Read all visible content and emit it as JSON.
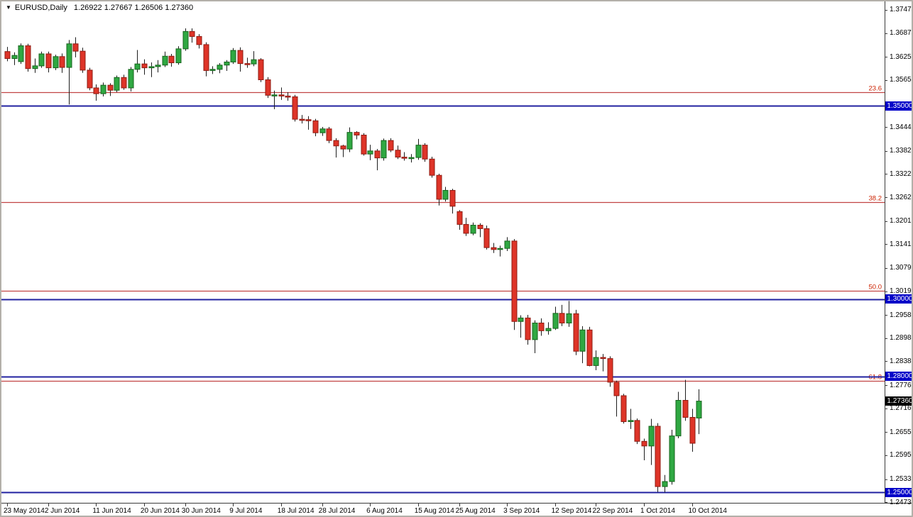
{
  "header": {
    "dropdown_icon": "▼",
    "symbol_timeframe": "EURUSD,Daily",
    "ohlc_text": "1.26922 1.27667 1.26506 1.27360"
  },
  "chart_data": {
    "type": "candlestick",
    "symbol": "EURUSD",
    "timeframe": "Daily",
    "grid": false,
    "ylim": [
      1.2473,
      1.3755
    ],
    "last_candle": {
      "open": 1.26922,
      "high": 1.27667,
      "low": 1.26506,
      "close": 1.2736
    },
    "current_price": "1.27360",
    "candles": [
      [
        1.364,
        1.3652,
        1.3615,
        1.3622
      ],
      [
        1.3622,
        1.3638,
        1.3605,
        1.363
      ],
      [
        1.3614,
        1.3661,
        1.3608,
        1.3655
      ],
      [
        1.3655,
        1.366,
        1.3588,
        1.3596
      ],
      [
        1.3596,
        1.3622,
        1.3585,
        1.3603
      ],
      [
        1.3603,
        1.364,
        1.3598,
        1.3634
      ],
      [
        1.3634,
        1.364,
        1.3586,
        1.3598
      ],
      [
        1.3598,
        1.3632,
        1.3592,
        1.3627
      ],
      [
        1.3627,
        1.3635,
        1.3585,
        1.3599
      ],
      [
        1.3599,
        1.367,
        1.3503,
        1.366
      ],
      [
        1.366,
        1.3677,
        1.3625,
        1.3641
      ],
      [
        1.3641,
        1.365,
        1.3585,
        1.3592
      ],
      [
        1.3592,
        1.3598,
        1.354,
        1.3546
      ],
      [
        1.3546,
        1.3555,
        1.3513,
        1.3531
      ],
      [
        1.3531,
        1.356,
        1.3524,
        1.3553
      ],
      [
        1.3553,
        1.3558,
        1.3525,
        1.354
      ],
      [
        1.354,
        1.3578,
        1.3535,
        1.3573
      ],
      [
        1.3573,
        1.358,
        1.3541,
        1.3546
      ],
      [
        1.3546,
        1.36,
        1.3537,
        1.3594
      ],
      [
        1.3594,
        1.3644,
        1.3586,
        1.3608
      ],
      [
        1.3608,
        1.362,
        1.358,
        1.3598
      ],
      [
        1.3598,
        1.3612,
        1.3574,
        1.3601
      ],
      [
        1.3601,
        1.3618,
        1.3586,
        1.3605
      ],
      [
        1.3605,
        1.364,
        1.36,
        1.3628
      ],
      [
        1.3628,
        1.3634,
        1.3601,
        1.3611
      ],
      [
        1.3611,
        1.3654,
        1.3606,
        1.3647
      ],
      [
        1.3647,
        1.37,
        1.3642,
        1.3692
      ],
      [
        1.3692,
        1.37,
        1.3663,
        1.3679
      ],
      [
        1.3679,
        1.3685,
        1.3648,
        1.3658
      ],
      [
        1.3658,
        1.3664,
        1.3576,
        1.3591
      ],
      [
        1.3591,
        1.3602,
        1.3582,
        1.3594
      ],
      [
        1.3594,
        1.361,
        1.3584,
        1.3605
      ],
      [
        1.3605,
        1.3618,
        1.359,
        1.3613
      ],
      [
        1.3613,
        1.3649,
        1.3608,
        1.3643
      ],
      [
        1.3643,
        1.3651,
        1.3588,
        1.3609
      ],
      [
        1.3609,
        1.3624,
        1.3598,
        1.3608
      ],
      [
        1.3608,
        1.3641,
        1.3602,
        1.3619
      ],
      [
        1.3619,
        1.3623,
        1.3561,
        1.3567
      ],
      [
        1.3567,
        1.3574,
        1.352,
        1.3527
      ],
      [
        1.3527,
        1.3539,
        1.3491,
        1.3528
      ],
      [
        1.3528,
        1.3547,
        1.3515,
        1.3525
      ],
      [
        1.3525,
        1.3535,
        1.3513,
        1.3523
      ],
      [
        1.3523,
        1.3528,
        1.3459,
        1.3465
      ],
      [
        1.3465,
        1.3476,
        1.3454,
        1.3464
      ],
      [
        1.3464,
        1.3473,
        1.3438,
        1.3461
      ],
      [
        1.3461,
        1.3466,
        1.3421,
        1.343
      ],
      [
        1.343,
        1.3445,
        1.3422,
        1.344
      ],
      [
        1.344,
        1.3445,
        1.3403,
        1.341
      ],
      [
        1.341,
        1.3416,
        1.3366,
        1.3396
      ],
      [
        1.3396,
        1.3399,
        1.3367,
        1.3388
      ],
      [
        1.3388,
        1.3444,
        1.338,
        1.3431
      ],
      [
        1.3431,
        1.3434,
        1.3413,
        1.3424
      ],
      [
        1.3424,
        1.3429,
        1.3371,
        1.3375
      ],
      [
        1.3375,
        1.3399,
        1.3359,
        1.3383
      ],
      [
        1.3383,
        1.3388,
        1.3333,
        1.3365
      ],
      [
        1.3365,
        1.3415,
        1.3358,
        1.341
      ],
      [
        1.341,
        1.3416,
        1.338,
        1.3385
      ],
      [
        1.3385,
        1.3397,
        1.3362,
        1.3367
      ],
      [
        1.3367,
        1.338,
        1.3358,
        1.3364
      ],
      [
        1.3364,
        1.3375,
        1.3353,
        1.3366
      ],
      [
        1.3366,
        1.3414,
        1.336,
        1.3398
      ],
      [
        1.3398,
        1.3403,
        1.3355,
        1.3362
      ],
      [
        1.3362,
        1.3368,
        1.3314,
        1.332
      ],
      [
        1.332,
        1.3324,
        1.3242,
        1.3258
      ],
      [
        1.3258,
        1.329,
        1.3252,
        1.3281
      ],
      [
        1.3281,
        1.3285,
        1.3221,
        1.324
      ],
      [
        1.3226,
        1.323,
        1.3179,
        1.3193
      ],
      [
        1.3193,
        1.321,
        1.3163,
        1.317
      ],
      [
        1.317,
        1.3198,
        1.3165,
        1.3191
      ],
      [
        1.3191,
        1.3196,
        1.316,
        1.3182
      ],
      [
        1.3182,
        1.319,
        1.3128,
        1.3133
      ],
      [
        1.3133,
        1.3145,
        1.3119,
        1.3128
      ],
      [
        1.3128,
        1.3138,
        1.311,
        1.3131
      ],
      [
        1.3131,
        1.316,
        1.3124,
        1.315
      ],
      [
        1.315,
        1.3155,
        1.292,
        1.2942
      ],
      [
        1.2942,
        1.2958,
        1.29,
        1.2951
      ],
      [
        1.2951,
        1.2959,
        1.2882,
        1.2895
      ],
      [
        1.2895,
        1.2945,
        1.286,
        1.2938
      ],
      [
        1.2938,
        1.295,
        1.2905,
        1.2918
      ],
      [
        1.2918,
        1.294,
        1.2908,
        1.2924
      ],
      [
        1.2924,
        1.298,
        1.292,
        1.2963
      ],
      [
        1.2963,
        1.2985,
        1.293,
        1.2938
      ],
      [
        1.2938,
        1.2995,
        1.2928,
        1.2962
      ],
      [
        1.2962,
        1.2972,
        1.2855,
        1.2865
      ],
      [
        1.2865,
        1.293,
        1.2834,
        1.292
      ],
      [
        1.292,
        1.2928,
        1.2826,
        1.2828
      ],
      [
        1.2828,
        1.2867,
        1.2816,
        1.2849
      ],
      [
        1.2849,
        1.2858,
        1.2813,
        1.2846
      ],
      [
        1.2846,
        1.2852,
        1.2773,
        1.2785
      ],
      [
        1.2785,
        1.2789,
        1.2696,
        1.275
      ],
      [
        1.275,
        1.2755,
        1.2678,
        1.2683
      ],
      [
        1.2683,
        1.2716,
        1.2664,
        1.2686
      ],
      [
        1.2686,
        1.2691,
        1.2625,
        1.2632
      ],
      [
        1.2632,
        1.2639,
        1.2583,
        1.262
      ],
      [
        1.262,
        1.269,
        1.2571,
        1.2671
      ],
      [
        1.2671,
        1.2679,
        1.2501,
        1.2515
      ],
      [
        1.2515,
        1.2545,
        1.25,
        1.2528
      ],
      [
        1.2528,
        1.2662,
        1.252,
        1.2646
      ],
      [
        1.2646,
        1.276,
        1.264,
        1.2738
      ],
      [
        1.2738,
        1.2791,
        1.2685,
        1.2694
      ],
      [
        1.2694,
        1.2716,
        1.2605,
        1.2627
      ],
      [
        1.26922,
        1.27667,
        1.26506,
        1.2736
      ]
    ],
    "hlines": [
      {
        "price": 1.35,
        "label": "1.35000"
      },
      {
        "price": 1.3,
        "label": "1.30000"
      },
      {
        "price": 1.28,
        "label": "1.28000"
      },
      {
        "price": 1.25,
        "label": "1.25000"
      }
    ],
    "fib_levels": [
      {
        "label": "23.6",
        "price": 1.35349
      },
      {
        "label": "38.2",
        "price": 1.32505
      },
      {
        "label": "50.0",
        "price": 1.30211
      },
      {
        "label": "61.8",
        "price": 1.27881
      }
    ],
    "y_axis": {
      "ticks": [
        {
          "label": "1.37470",
          "price": 1.3747,
          "type": "tick"
        },
        {
          "label": "1.36870",
          "price": 1.3687,
          "type": "tick"
        },
        {
          "label": "1.36255",
          "price": 1.36255,
          "type": "tick"
        },
        {
          "label": "1.35655",
          "price": 1.35655,
          "type": "tick"
        },
        {
          "label": "1.35000",
          "price": 1.35,
          "type": "badge-blue"
        },
        {
          "label": "1.34440",
          "price": 1.3444,
          "type": "tick"
        },
        {
          "label": "1.33825",
          "price": 1.33825,
          "type": "tick"
        },
        {
          "label": "1.33225",
          "price": 1.33225,
          "type": "tick"
        },
        {
          "label": "1.32625",
          "price": 1.32625,
          "type": "tick"
        },
        {
          "label": "1.32010",
          "price": 1.3201,
          "type": "tick"
        },
        {
          "label": "1.31410",
          "price": 1.3141,
          "type": "tick"
        },
        {
          "label": "1.30795",
          "price": 1.30795,
          "type": "tick"
        },
        {
          "label": "1.30195",
          "price": 1.30195,
          "type": "tick"
        },
        {
          "label": "1.30000",
          "price": 1.3,
          "type": "badge-blue"
        },
        {
          "label": "1.29580",
          "price": 1.2958,
          "type": "tick"
        },
        {
          "label": "1.28980",
          "price": 1.2898,
          "type": "tick"
        },
        {
          "label": "1.28380",
          "price": 1.2838,
          "type": "tick"
        },
        {
          "label": "1.28000",
          "price": 1.28,
          "type": "badge-blue"
        },
        {
          "label": "1.27765",
          "price": 1.27765,
          "type": "tick"
        },
        {
          "label": "1.27360",
          "price": 1.2736,
          "type": "badge-black"
        },
        {
          "label": "1.27165",
          "price": 1.27165,
          "type": "tick"
        },
        {
          "label": "1.26550",
          "price": 1.2655,
          "type": "tick"
        },
        {
          "label": "1.25950",
          "price": 1.2595,
          "type": "tick"
        },
        {
          "label": "1.25335",
          "price": 1.25335,
          "type": "tick"
        },
        {
          "label": "1.25000",
          "price": 1.25,
          "type": "badge-blue"
        },
        {
          "label": "1.24735",
          "price": 1.24735,
          "type": "tick"
        }
      ]
    },
    "x_axis": {
      "ticks": [
        {
          "label": "23 May 2014",
          "index": 0
        },
        {
          "label": "2 Jun 2014",
          "index": 6
        },
        {
          "label": "11 Jun 2014",
          "index": 13
        },
        {
          "label": "20 Jun 2014",
          "index": 20
        },
        {
          "label": "30 Jun 2014",
          "index": 26
        },
        {
          "label": "9 Jul 2014",
          "index": 33
        },
        {
          "label": "18 Jul 2014",
          "index": 40
        },
        {
          "label": "28 Jul 2014",
          "index": 46
        },
        {
          "label": "6 Aug 2014",
          "index": 53
        },
        {
          "label": "15 Aug 2014",
          "index": 60
        },
        {
          "label": "25 Aug 2014",
          "index": 66
        },
        {
          "label": "3 Sep 2014",
          "index": 73
        },
        {
          "label": "12 Sep 2014",
          "index": 80
        },
        {
          "label": "22 Sep 2014",
          "index": 86
        },
        {
          "label": "1 Oct 2014",
          "index": 93
        },
        {
          "label": "10 Oct 2014",
          "index": 100
        }
      ]
    },
    "colors": {
      "bull_fill": "#2FA842",
      "bull_border": "#17631C",
      "bear_fill": "#DE3428",
      "bear_border": "#8E1B12",
      "wick": "#1E1E1E",
      "support_line": "#2121A0",
      "fib_line": "#C14444",
      "fib_label": "#CC2200",
      "badge_blue": "#0000C8",
      "badge_black": "#000000",
      "axis_text": "#000000",
      "background": "#FFFFFF"
    }
  }
}
